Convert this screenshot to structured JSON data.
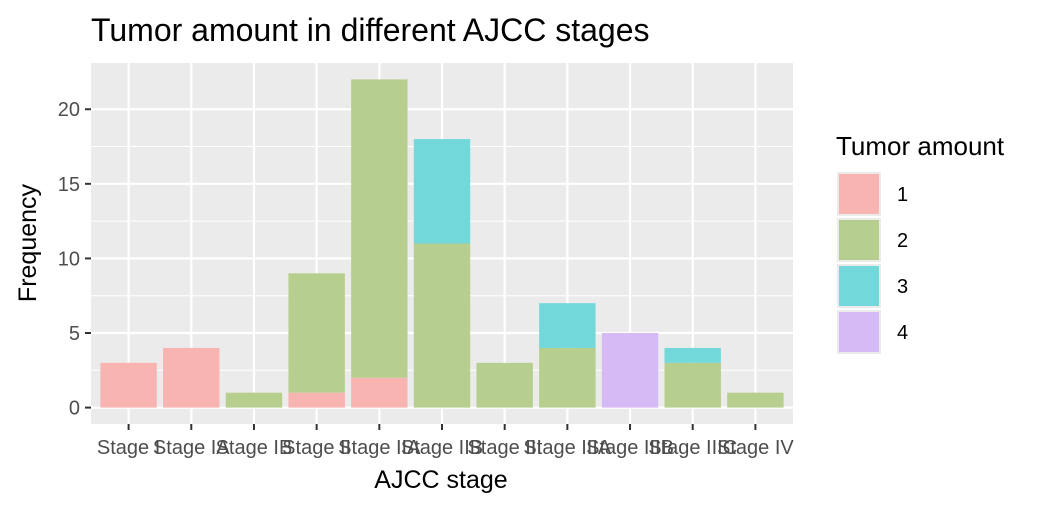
{
  "chart_data": {
    "type": "bar",
    "stacked": true,
    "title": "Tumor amount in different AJCC stages",
    "xlabel": "AJCC stage",
    "ylabel": "Frequency",
    "categories": [
      "Stage I",
      "Stage IA",
      "Stage IB",
      "Stage II",
      "Stage IIA",
      "Stage IIB",
      "Stage III",
      "Stage IIIA",
      "Stage IIIB",
      "Stage IIIC",
      "Stage IV"
    ],
    "yticks": [
      0,
      5,
      10,
      15,
      20
    ],
    "ylim": [
      -1.1,
      23.1
    ],
    "grid": true,
    "legend": {
      "title": "Tumor amount",
      "position": "right"
    },
    "series": [
      {
        "name": "1",
        "color": "#F8B4B0",
        "values": [
          3,
          4,
          0,
          1,
          2,
          0,
          0,
          0,
          0,
          0,
          0
        ]
      },
      {
        "name": "2",
        "color": "#B6CF8E",
        "values": [
          0,
          0,
          1,
          8,
          20,
          11,
          3,
          4,
          0,
          3,
          1
        ]
      },
      {
        "name": "3",
        "color": "#72D8DA",
        "values": [
          0,
          0,
          0,
          0,
          0,
          7,
          0,
          3,
          0,
          1,
          0
        ]
      },
      {
        "name": "4",
        "color": "#D6BAF5",
        "values": [
          0,
          0,
          0,
          0,
          0,
          0,
          0,
          0,
          5,
          0,
          0
        ]
      }
    ],
    "panel_color": "#EBEBEB",
    "grid_color": "#FFFFFF"
  }
}
